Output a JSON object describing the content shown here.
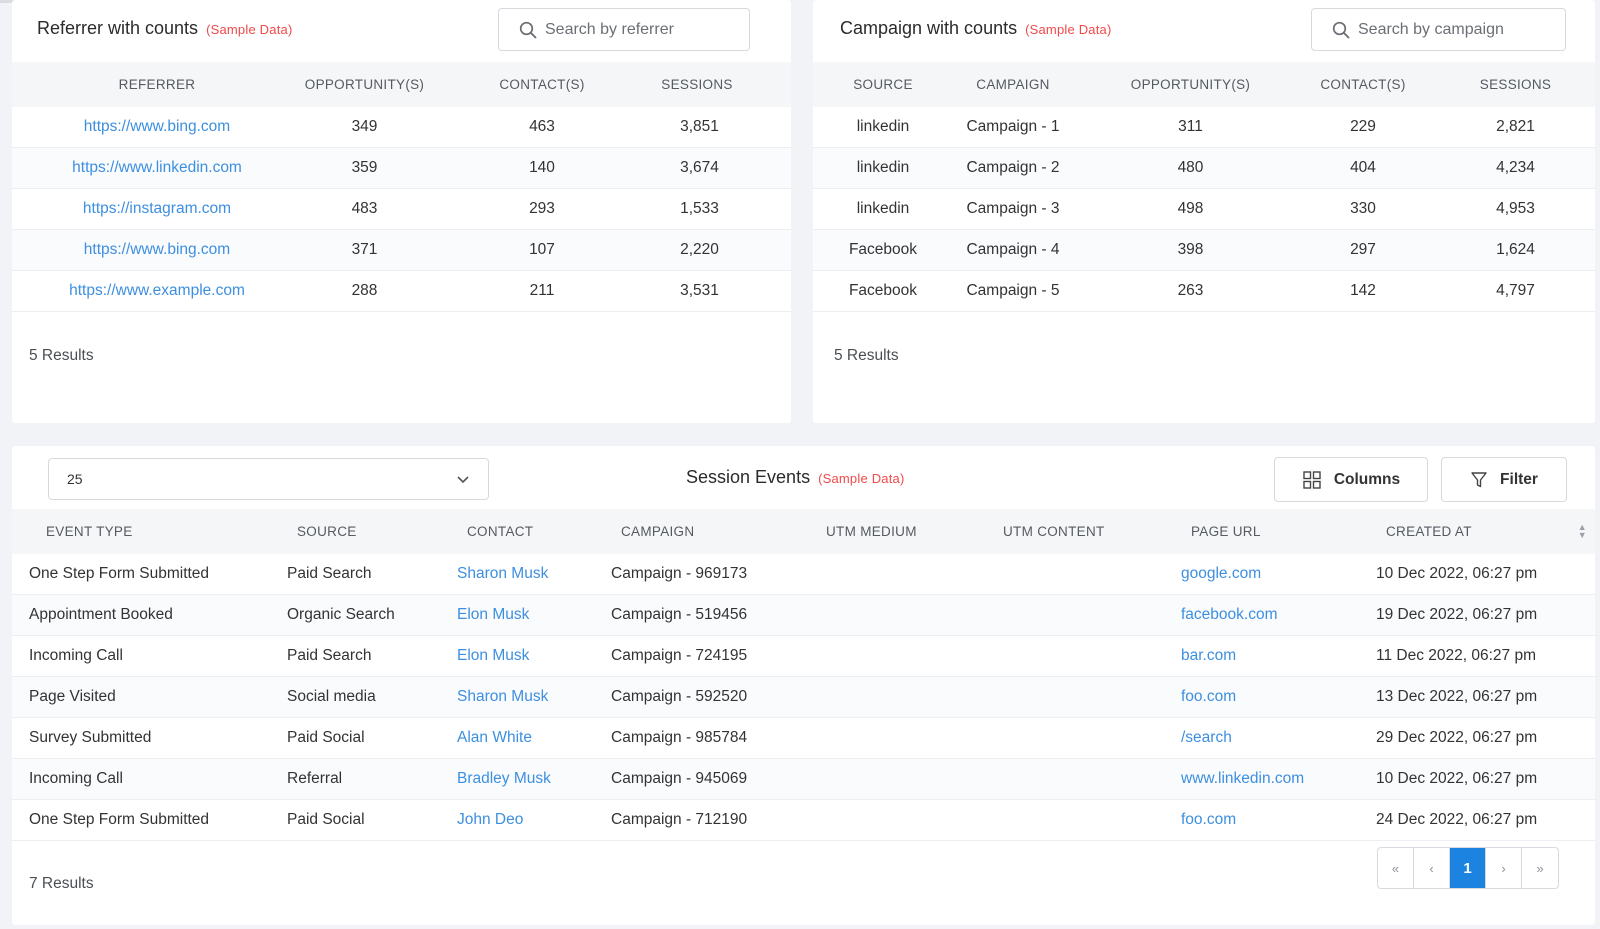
{
  "referrer_card": {
    "title": "Referrer with counts",
    "sample_label": "(Sample Data)",
    "search_placeholder": "Search by referrer",
    "columns": [
      "REFERRER",
      "OPPORTUNITY(S)",
      "CONTACT(S)",
      "SESSIONS"
    ],
    "rows": [
      {
        "referrer": "https://www.bing.com",
        "opportunities": "349",
        "contacts": "463",
        "sessions": "3,851"
      },
      {
        "referrer": "https://www.linkedin.com",
        "opportunities": "359",
        "contacts": "140",
        "sessions": "3,674"
      },
      {
        "referrer": "https://instagram.com",
        "opportunities": "483",
        "contacts": "293",
        "sessions": "1,533"
      },
      {
        "referrer": "https://www.bing.com",
        "opportunities": "371",
        "contacts": "107",
        "sessions": "2,220"
      },
      {
        "referrer": "https://www.example.com",
        "opportunities": "288",
        "contacts": "211",
        "sessions": "3,531"
      }
    ],
    "results": "5 Results"
  },
  "campaign_card": {
    "title": "Campaign with counts",
    "sample_label": "(Sample Data)",
    "search_placeholder": "Search by campaign",
    "columns": [
      "SOURCE",
      "CAMPAIGN",
      "OPPORTUNITY(S)",
      "CONTACT(S)",
      "SESSIONS"
    ],
    "rows": [
      {
        "source": "linkedin",
        "campaign": "Campaign - 1",
        "opportunities": "311",
        "contacts": "229",
        "sessions": "2,821"
      },
      {
        "source": "linkedin",
        "campaign": "Campaign - 2",
        "opportunities": "480",
        "contacts": "404",
        "sessions": "4,234"
      },
      {
        "source": "linkedin",
        "campaign": "Campaign - 3",
        "opportunities": "498",
        "contacts": "330",
        "sessions": "4,953"
      },
      {
        "source": "Facebook",
        "campaign": "Campaign - 4",
        "opportunities": "398",
        "contacts": "297",
        "sessions": "1,624"
      },
      {
        "source": "Facebook",
        "campaign": "Campaign - 5",
        "opportunities": "263",
        "contacts": "142",
        "sessions": "4,797"
      }
    ],
    "results": "5 Results"
  },
  "events_card": {
    "page_size": "25",
    "title": "Session Events",
    "sample_label": "(Sample Data)",
    "columns_button": "Columns",
    "filter_button": "Filter",
    "columns": [
      "EVENT TYPE",
      "SOURCE",
      "CONTACT",
      "CAMPAIGN",
      "UTM MEDIUM",
      "UTM CONTENT",
      "PAGE URL",
      "CREATED AT"
    ],
    "rows": [
      {
        "event_type": "One Step Form Submitted",
        "source": "Paid Search",
        "contact": "Sharon Musk",
        "campaign": "Campaign - 969173",
        "utm_medium": "",
        "utm_content": "",
        "page_url": "google.com",
        "created_at": "10 Dec 2022, 06:27 pm"
      },
      {
        "event_type": "Appointment Booked",
        "source": "Organic Search",
        "contact": "Elon Musk",
        "campaign": "Campaign - 519456",
        "utm_medium": "",
        "utm_content": "",
        "page_url": "facebook.com",
        "created_at": "19 Dec 2022, 06:27 pm"
      },
      {
        "event_type": "Incoming Call",
        "source": "Paid Search",
        "contact": "Elon Musk",
        "campaign": "Campaign - 724195",
        "utm_medium": "",
        "utm_content": "",
        "page_url": "bar.com",
        "created_at": "11 Dec 2022, 06:27 pm"
      },
      {
        "event_type": "Page Visited",
        "source": "Social media",
        "contact": "Sharon Musk",
        "campaign": "Campaign - 592520",
        "utm_medium": "",
        "utm_content": "",
        "page_url": "foo.com",
        "created_at": "13 Dec 2022, 06:27 pm"
      },
      {
        "event_type": "Survey Submitted",
        "source": "Paid Social",
        "contact": "Alan White",
        "campaign": "Campaign - 985784",
        "utm_medium": "",
        "utm_content": "",
        "page_url": "/search",
        "created_at": "29 Dec 2022, 06:27 pm"
      },
      {
        "event_type": "Incoming Call",
        "source": "Referral",
        "contact": "Bradley Musk",
        "campaign": "Campaign - 945069",
        "utm_medium": "",
        "utm_content": "",
        "page_url": "www.linkedin.com",
        "created_at": "10 Dec 2022, 06:27 pm"
      },
      {
        "event_type": "One Step Form Submitted",
        "source": "Paid Social",
        "contact": "John Deo",
        "campaign": "Campaign - 712190",
        "utm_medium": "",
        "utm_content": "",
        "page_url": "foo.com",
        "created_at": "24 Dec 2022, 06:27 pm"
      }
    ],
    "results": "7 Results",
    "pagination": {
      "first": "«",
      "prev": "‹",
      "current": "1",
      "next": "›",
      "last": "»"
    }
  },
  "colors": {
    "link": "#3d8fe0",
    "sample_label": "#f0494a",
    "active_page": "#1c84e0",
    "header_bg": "#f5f6f8"
  },
  "icons": {
    "search": "search-icon",
    "chevron": "chevron-down-icon",
    "columns": "columns-grid-icon",
    "filter": "filter-funnel-icon",
    "sort": "sort-icon"
  }
}
